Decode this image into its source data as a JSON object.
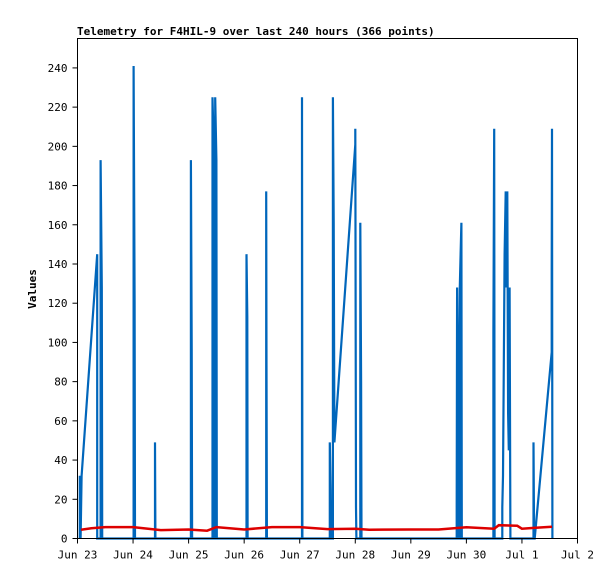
{
  "chart_data": {
    "type": "line",
    "title": "Telemetry for F4HIL-9 over last 240 hours (366 points)",
    "ylabel": "Values",
    "xlabel": "",
    "x_range": [
      "2023-06-23T00:00",
      "2023-07-02T00:00"
    ],
    "ylim": [
      0,
      255
    ],
    "y_ticks": [
      0,
      20,
      40,
      60,
      80,
      100,
      120,
      140,
      160,
      180,
      200,
      220,
      240
    ],
    "x_ticks": [
      {
        "t": "2023-06-23T00:00",
        "label": "Jun 23"
      },
      {
        "t": "2023-06-24T00:00",
        "label": "Jun 24"
      },
      {
        "t": "2023-06-25T00:00",
        "label": "Jun 25"
      },
      {
        "t": "2023-06-26T00:00",
        "label": "Jun 26"
      },
      {
        "t": "2023-06-27T00:00",
        "label": "Jun 27"
      },
      {
        "t": "2023-06-28T00:00",
        "label": "Jun 28"
      },
      {
        "t": "2023-06-29T00:00",
        "label": "Jun 29"
      },
      {
        "t": "2023-06-30T00:00",
        "label": "Jun 30"
      },
      {
        "t": "2023-07-01T00:00",
        "label": "Jul 1"
      },
      {
        "t": "2023-07-02T00:00",
        "label": "Jul 2"
      }
    ],
    "grid": false,
    "legend": "none",
    "series": [
      {
        "color": "#0066bb",
        "points": [
          [
            "2023-06-23T01:00",
            0
          ],
          [
            "2023-06-23T01:00",
            32
          ],
          [
            "2023-06-23T01:10",
            16
          ],
          [
            "2023-06-23T01:20",
            0
          ],
          [
            "2023-06-23T01:45",
            32
          ],
          [
            "2023-06-23T08:30",
            145
          ],
          [
            "2023-06-23T08:30",
            0
          ],
          [
            "2023-06-23T10:00",
            0
          ],
          [
            "2023-06-23T10:00",
            193
          ],
          [
            "2023-06-23T10:30",
            128
          ],
          [
            "2023-06-23T10:40",
            0
          ],
          [
            "2023-06-24T00:15",
            0
          ],
          [
            "2023-06-24T00:15",
            241
          ],
          [
            "2023-06-24T00:40",
            121
          ],
          [
            "2023-06-24T00:50",
            0
          ],
          [
            "2023-06-24T09:30",
            0
          ],
          [
            "2023-06-24T09:30",
            49
          ],
          [
            "2023-06-24T09:40",
            0
          ],
          [
            "2023-06-25T01:00",
            0
          ],
          [
            "2023-06-25T01:00",
            193
          ],
          [
            "2023-06-25T01:20",
            97
          ],
          [
            "2023-06-25T01:30",
            0
          ],
          [
            "2023-06-25T10:20",
            0
          ],
          [
            "2023-06-25T10:20",
            225
          ],
          [
            "2023-06-25T10:40",
            209
          ],
          [
            "2023-06-25T10:50",
            0
          ],
          [
            "2023-06-25T11:30",
            0
          ],
          [
            "2023-06-25T11:30",
            225
          ],
          [
            "2023-06-25T12:00",
            193
          ],
          [
            "2023-06-25T12:10",
            0
          ],
          [
            "2023-06-26T01:00",
            0
          ],
          [
            "2023-06-26T01:00",
            145
          ],
          [
            "2023-06-26T01:20",
            113
          ],
          [
            "2023-06-26T01:30",
            0
          ],
          [
            "2023-06-26T09:30",
            0
          ],
          [
            "2023-06-26T09:30",
            177
          ],
          [
            "2023-06-26T09:40",
            88
          ],
          [
            "2023-06-26T09:50",
            0
          ],
          [
            "2023-06-27T01:00",
            0
          ],
          [
            "2023-06-27T01:00",
            225
          ],
          [
            "2023-06-27T01:10",
            0
          ],
          [
            "2023-06-27T13:00",
            0
          ],
          [
            "2023-06-27T13:00",
            49
          ],
          [
            "2023-06-27T13:20",
            25
          ],
          [
            "2023-06-27T13:30",
            0
          ],
          [
            "2023-06-27T14:20",
            0
          ],
          [
            "2023-06-27T14:20",
            225
          ],
          [
            "2023-06-27T14:40",
            161
          ],
          [
            "2023-06-27T15:00",
            49
          ],
          [
            "2023-06-28T00:00",
            201
          ],
          [
            "2023-06-28T00:00",
            209
          ],
          [
            "2023-06-28T00:20",
            16
          ],
          [
            "2023-06-28T00:30",
            0
          ],
          [
            "2023-06-28T02:10",
            0
          ],
          [
            "2023-06-28T02:10",
            161
          ],
          [
            "2023-06-28T02:30",
            80
          ],
          [
            "2023-06-28T02:40",
            0
          ],
          [
            "2023-06-29T19:50",
            0
          ],
          [
            "2023-06-29T19:50",
            16
          ],
          [
            "2023-06-29T20:00",
            128
          ],
          [
            "2023-06-29T20:20",
            97
          ],
          [
            "2023-06-29T20:30",
            0
          ],
          [
            "2023-06-29T21:10",
            0
          ],
          [
            "2023-06-29T21:10",
            128
          ],
          [
            "2023-06-29T21:30",
            145
          ],
          [
            "2023-06-29T21:50",
            161
          ],
          [
            "2023-06-29T22:00",
            0
          ],
          [
            "2023-06-30T11:40",
            0
          ],
          [
            "2023-06-30T11:40",
            105
          ],
          [
            "2023-06-30T12:00",
            209
          ],
          [
            "2023-06-30T12:10",
            0
          ],
          [
            "2023-06-30T15:30",
            0
          ],
          [
            "2023-06-30T15:30",
            16
          ],
          [
            "2023-06-30T15:50",
            32
          ],
          [
            "2023-06-30T16:10",
            88
          ],
          [
            "2023-06-30T16:30",
            145
          ],
          [
            "2023-06-30T17:00",
            177
          ],
          [
            "2023-06-30T17:20",
            128
          ],
          [
            "2023-06-30T17:40",
            177
          ],
          [
            "2023-06-30T18:00",
            64
          ],
          [
            "2023-06-30T18:20",
            45
          ],
          [
            "2023-06-30T18:40",
            128
          ],
          [
            "2023-06-30T19:00",
            0
          ],
          [
            "2023-07-01T05:00",
            0
          ],
          [
            "2023-07-01T05:00",
            49
          ],
          [
            "2023-07-01T05:15",
            0
          ],
          [
            "2023-07-01T05:30",
            0
          ],
          [
            "2023-07-01T12:50",
            95
          ],
          [
            "2023-07-01T12:50",
            136
          ],
          [
            "2023-07-01T13:00",
            209
          ],
          [
            "2023-07-01T13:10",
            0
          ]
        ]
      },
      {
        "color": "#dd0000",
        "points": [
          [
            "2023-06-23T01:30",
            4.5
          ],
          [
            "2023-06-23T06:00",
            5.2
          ],
          [
            "2023-06-23T12:00",
            5.8
          ],
          [
            "2023-06-24T00:00",
            5.8
          ],
          [
            "2023-06-24T12:00",
            4.3
          ],
          [
            "2023-06-25T00:00",
            4.6
          ],
          [
            "2023-06-25T08:00",
            4.0
          ],
          [
            "2023-06-25T12:00",
            5.8
          ],
          [
            "2023-06-26T00:00",
            4.6
          ],
          [
            "2023-06-26T12:00",
            5.8
          ],
          [
            "2023-06-27T00:00",
            5.8
          ],
          [
            "2023-06-27T12:00",
            4.8
          ],
          [
            "2023-06-28T00:00",
            5.0
          ],
          [
            "2023-06-28T06:00",
            4.5
          ],
          [
            "2023-06-29T00:00",
            4.6
          ],
          [
            "2023-06-29T12:00",
            4.6
          ],
          [
            "2023-06-30T00:00",
            5.7
          ],
          [
            "2023-06-30T12:00",
            5.0
          ],
          [
            "2023-06-30T14:00",
            6.8
          ],
          [
            "2023-06-30T22:00",
            6.5
          ],
          [
            "2023-07-01T00:00",
            5.0
          ],
          [
            "2023-07-01T06:00",
            5.5
          ],
          [
            "2023-07-01T13:00",
            6.0
          ]
        ]
      }
    ]
  }
}
